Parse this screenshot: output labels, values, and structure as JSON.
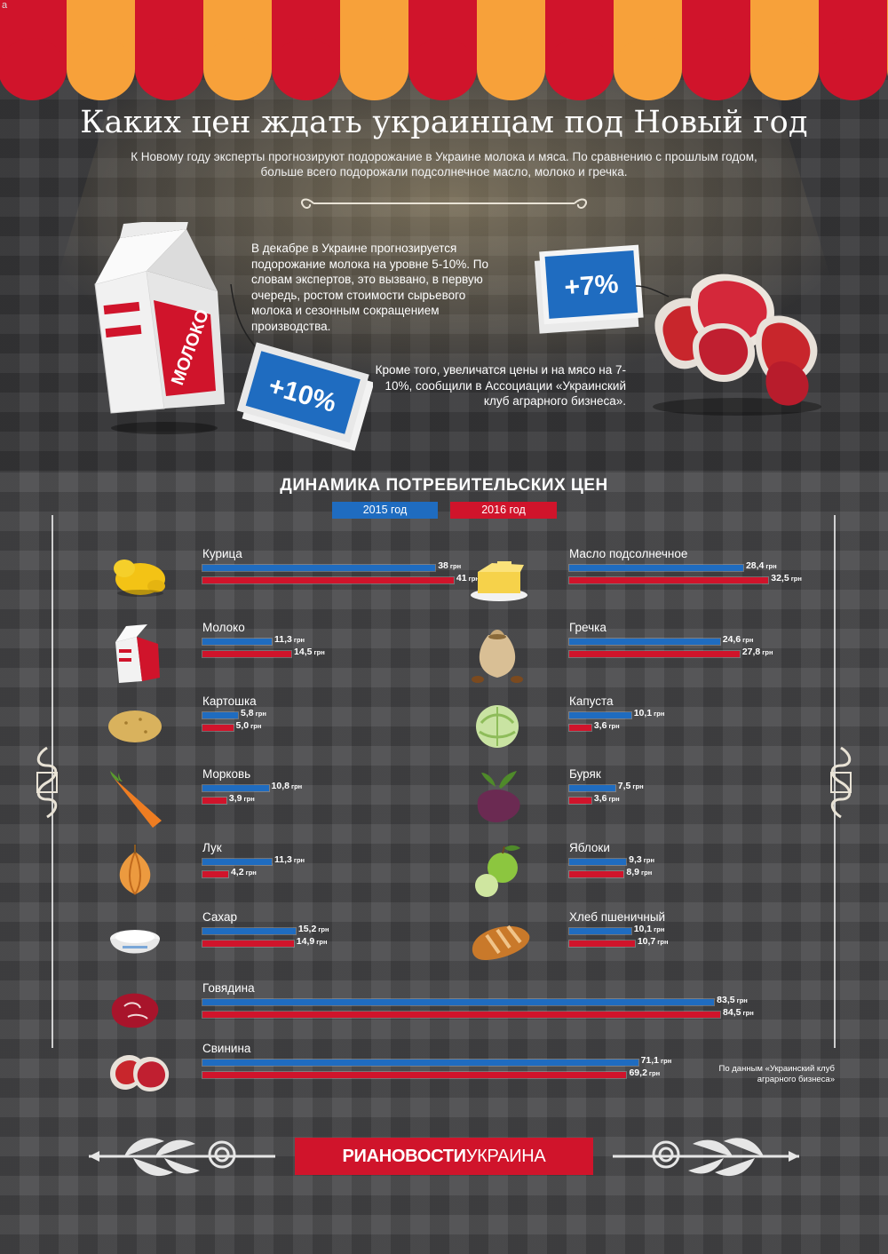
{
  "corner_mark": "a",
  "header": {
    "title": "Каких цен ждать украинцам под Новый год",
    "subtitle": "К Новому году эксперты прогнозируют подорожание в Украине молока и мяса. По сравнению с прошлым годом, больше всего подорожали подсолнечное масло, молоко и гречка."
  },
  "milk_block": {
    "text": "В декабре в Украине прогнозируется подорожание молока на уровне 5-10%. По словам экспертов, это вызвано, в первую очередь, ростом стоимости сырьевого молока и сезонным сокращением производства.",
    "package_label": "МОЛОКО",
    "tag": "+10%"
  },
  "meat_block": {
    "text": "Кроме того, увеличатся цены и на мясо на 7-10%, сообщили в Ассоциации «Украинский клуб аграрного бизнеса».",
    "tag": "+7%"
  },
  "colors": {
    "y2015": "#1f6cc0",
    "y2016": "#d0142b",
    "awning_red": "#d0142b",
    "awning_orange": "#f7a13a"
  },
  "chart_data": {
    "type": "bar",
    "title": "ДИНАМИКА ПОТРЕБИТЕЛЬСКИХ ЦЕН",
    "unit": "грн",
    "legend": [
      "2015 год",
      "2016 год"
    ],
    "series": [
      {
        "name": "2015 год",
        "values": [
          38,
          11.3,
          5.8,
          10.8,
          11.3,
          15.2,
          28.4,
          24.6,
          10.1,
          7.5,
          9.3,
          10.1,
          83.5,
          71.1
        ]
      },
      {
        "name": "2016 год",
        "values": [
          41,
          14.5,
          5.0,
          3.9,
          4.2,
          14.9,
          32.5,
          27.8,
          3.6,
          3.6,
          8.9,
          10.7,
          84.5,
          69.2
        ]
      }
    ],
    "categories": [
      "Курица",
      "Молоко",
      "Картошка",
      "Морковь",
      "Лук",
      "Сахар",
      "Масло подсолнечное",
      "Гречка",
      "Капуста",
      "Буряк",
      "Яблоки",
      "Хлеб пшеничный",
      "Говядина",
      "Свинина"
    ],
    "items": [
      {
        "label": "Курица",
        "icon": "chicken-icon",
        "v2015": "38",
        "v2016": "41"
      },
      {
        "label": "Молоко",
        "icon": "milk-carton-icon",
        "v2015": "11,3",
        "v2016": "14,5"
      },
      {
        "label": "Картошка",
        "icon": "potato-icon",
        "v2015": "5,8",
        "v2016": "5,0"
      },
      {
        "label": "Морковь",
        "icon": "carrot-icon",
        "v2015": "10,8",
        "v2016": "3,9"
      },
      {
        "label": "Лук",
        "icon": "onion-icon",
        "v2015": "11,3",
        "v2016": "4,2"
      },
      {
        "label": "Сахар",
        "icon": "sugar-bowl-icon",
        "v2015": "15,2",
        "v2016": "14,9"
      },
      {
        "label": "Масло подсолнечное",
        "icon": "butter-icon",
        "v2015": "28,4",
        "v2016": "32,5"
      },
      {
        "label": "Гречка",
        "icon": "buckwheat-sack-icon",
        "v2015": "24,6",
        "v2016": "27,8"
      },
      {
        "label": "Капуста",
        "icon": "cabbage-icon",
        "v2015": "10,1",
        "v2016": "3,6"
      },
      {
        "label": "Буряк",
        "icon": "beet-icon",
        "v2015": "7,5",
        "v2016": "3,6"
      },
      {
        "label": "Яблоки",
        "icon": "apple-icon",
        "v2015": "9,3",
        "v2016": "8,9"
      },
      {
        "label": "Хлеб пшеничный",
        "icon": "bread-icon",
        "v2015": "10,1",
        "v2016": "10,7"
      },
      {
        "label": "Говядина",
        "icon": "beef-icon",
        "v2015": "83,5",
        "v2016": "84,5"
      },
      {
        "label": "Свинина",
        "icon": "pork-icon",
        "v2015": "71,1",
        "v2016": "69,2"
      }
    ]
  },
  "footer": {
    "source": "По данным «Украинский клуб аграрного бизнеса»",
    "logo_bold": "РИАНОВОСТИ",
    "logo_light": "УКРАИНА"
  }
}
